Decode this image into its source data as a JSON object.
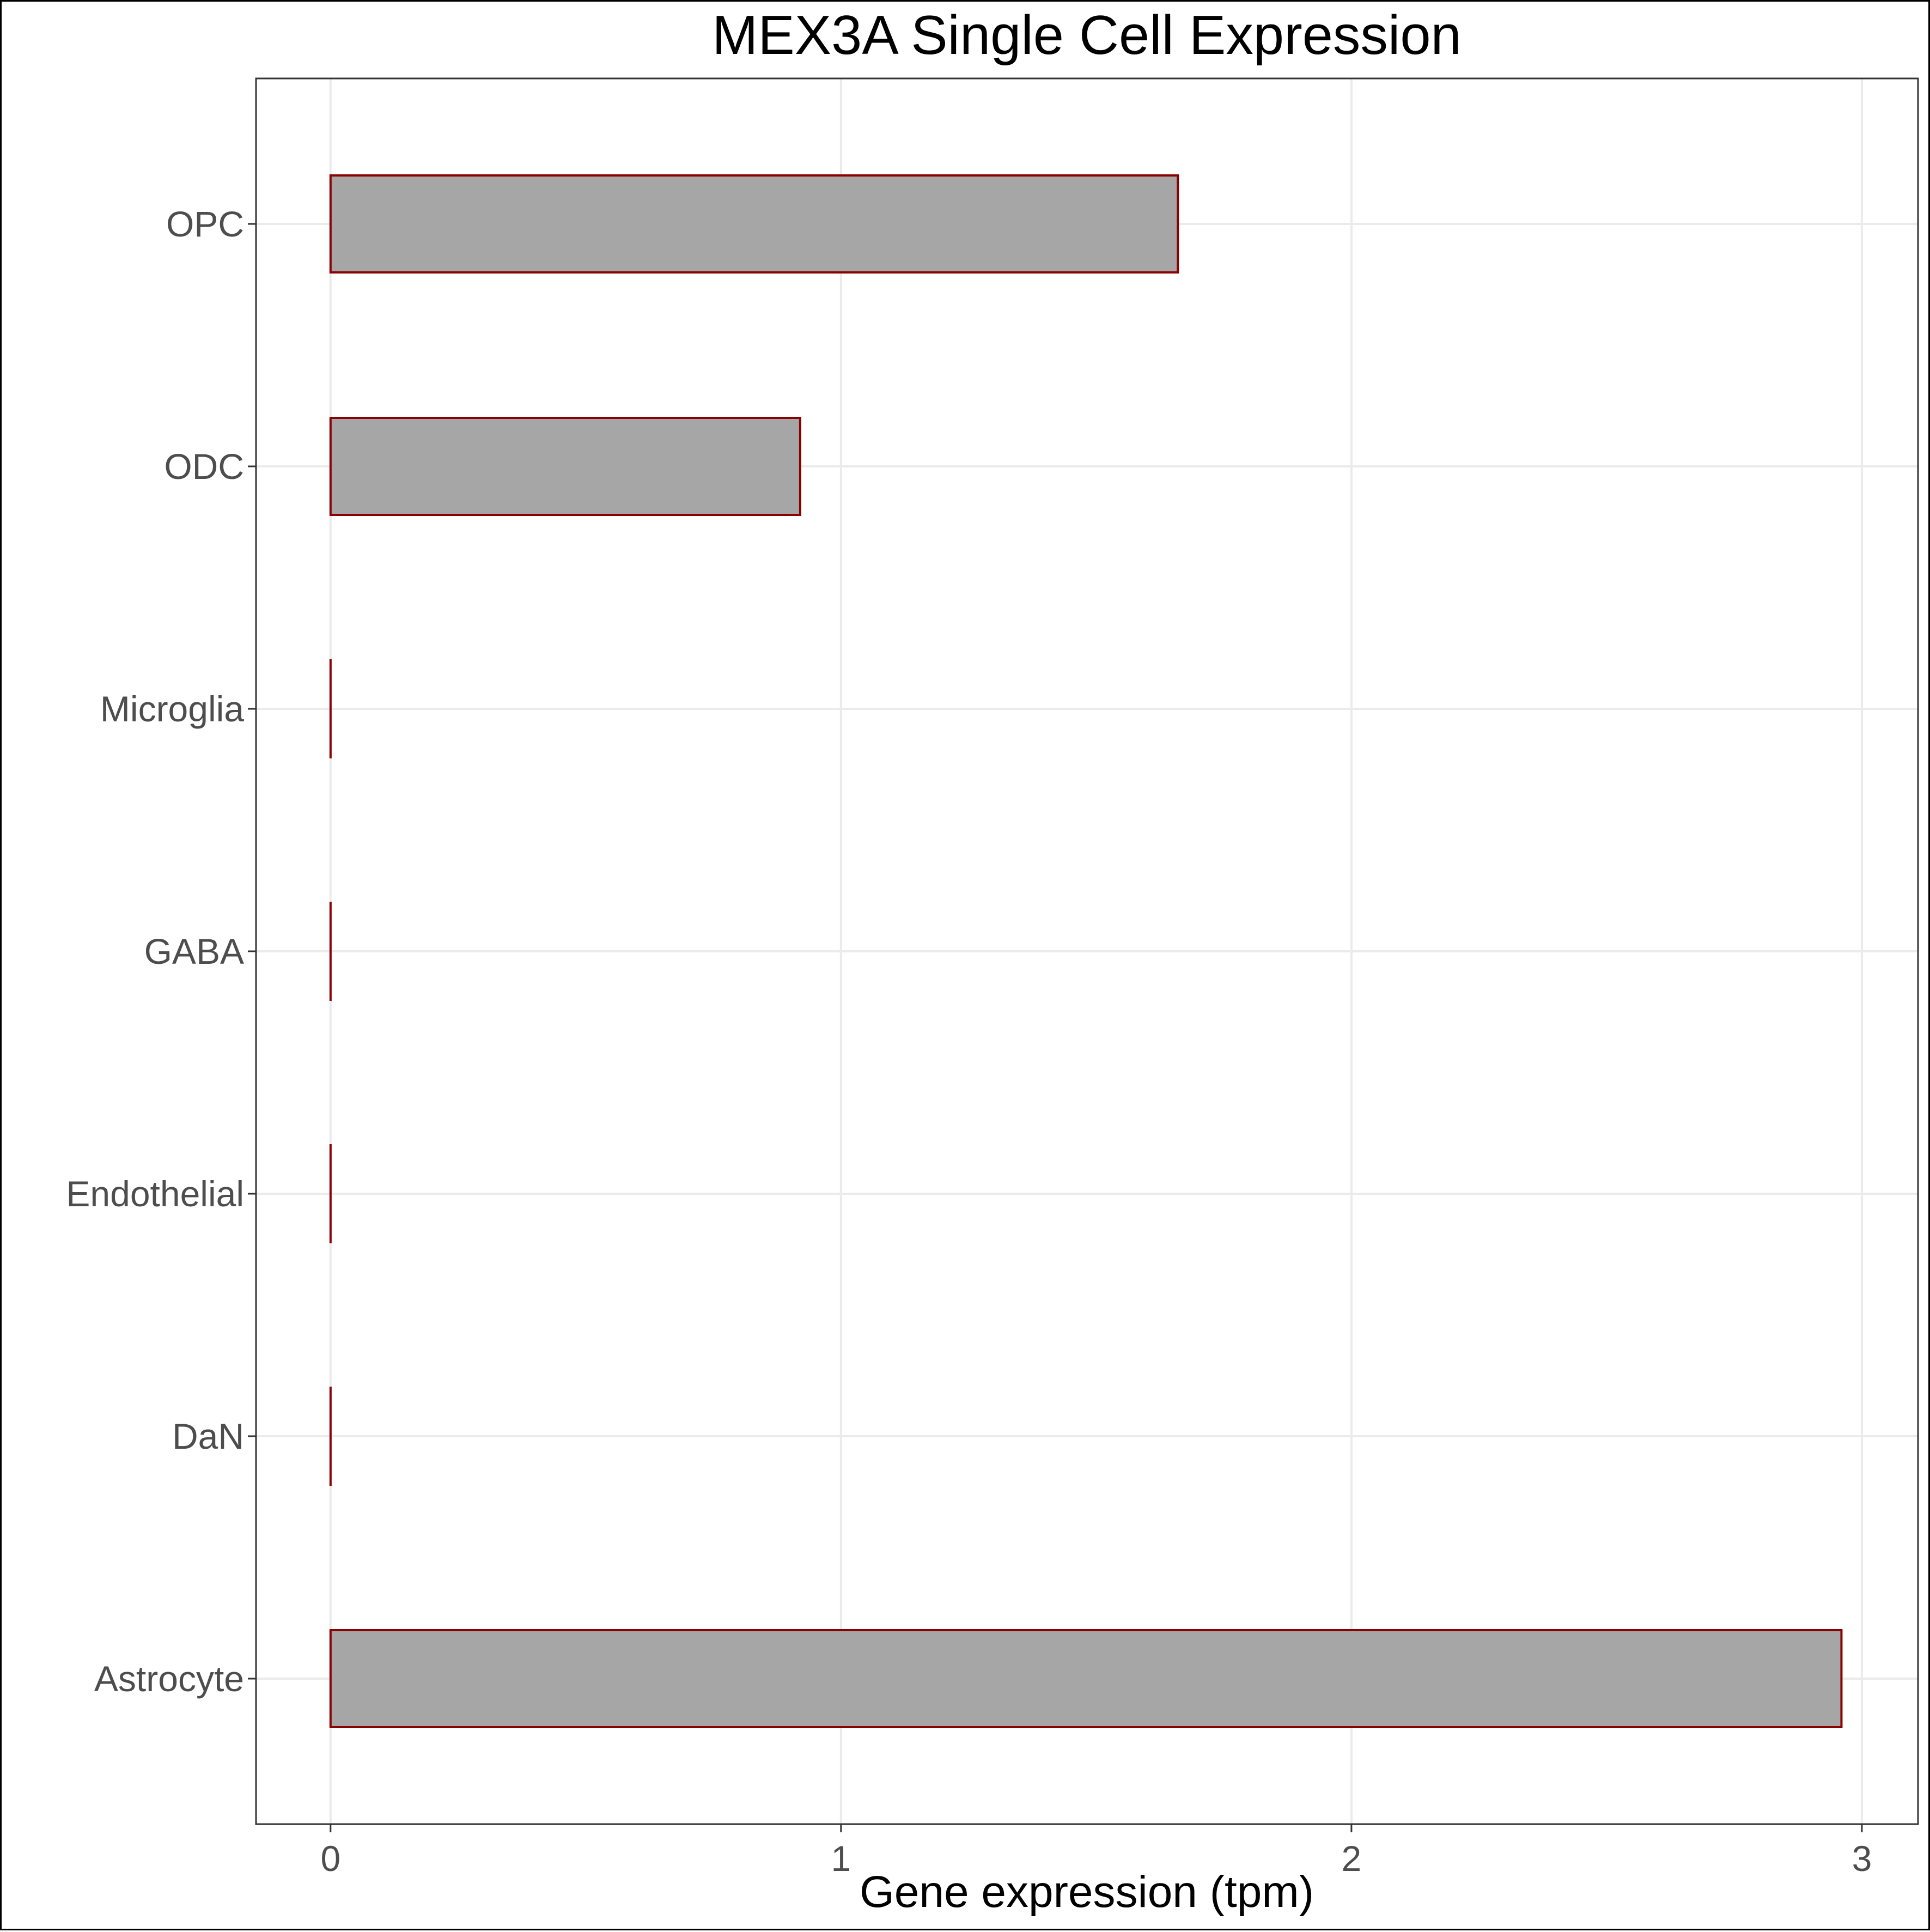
{
  "chart_data": {
    "type": "bar",
    "orientation": "horizontal",
    "title": "MEX3A Single Cell Expression",
    "xlabel": "Gene expression (tpm)",
    "ylabel": "",
    "categories": [
      "Astrocyte",
      "DaN",
      "Endothelial",
      "GABA",
      "Microglia",
      "ODC",
      "OPC"
    ],
    "values": [
      2.96,
      0,
      0,
      0,
      0,
      0.92,
      1.66
    ],
    "xlim": [
      -0.146,
      3.11
    ],
    "xticks": [
      0,
      1,
      2,
      3
    ],
    "grid": true,
    "legend": "none",
    "colors": {
      "bar_fill": "#a6a6a6",
      "bar_outline": "#8b0000",
      "grid": "#ebebeb",
      "panel_border": "#333333",
      "tick_label": "#4d4d4d",
      "title": "#000000"
    }
  }
}
